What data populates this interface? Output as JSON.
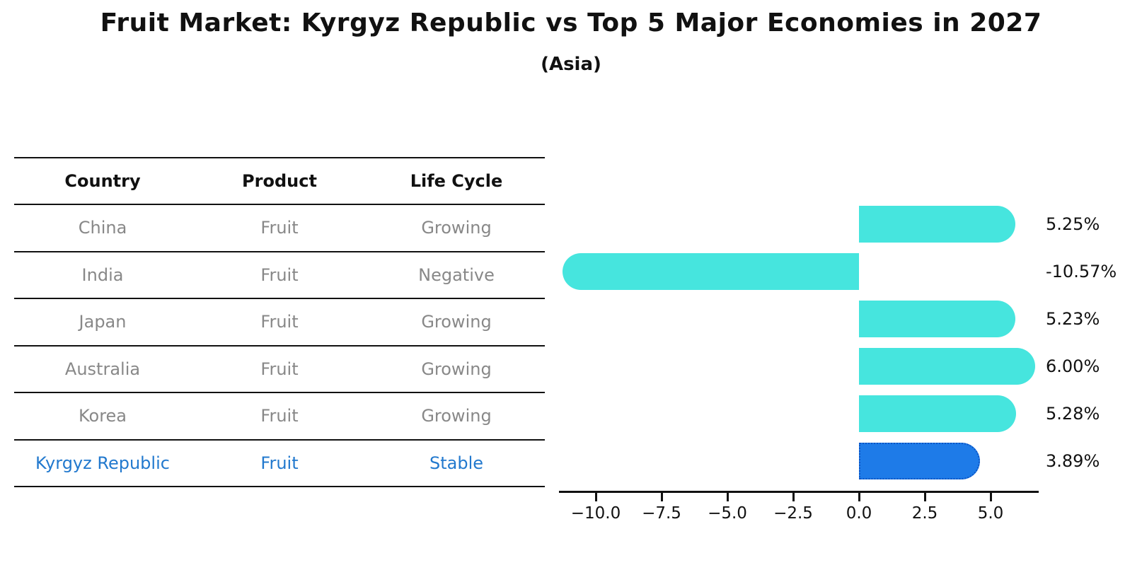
{
  "title": "Fruit Market: Kyrgyz Republic vs Top 5 Major Economies in 2027",
  "subtitle": "(Asia)",
  "table": {
    "headers": [
      "Country",
      "Product",
      "Life Cycle"
    ],
    "rows": [
      {
        "country": "China",
        "product": "Fruit",
        "life_cycle": "Growing",
        "highlight": false
      },
      {
        "country": "India",
        "product": "Fruit",
        "life_cycle": "Negative",
        "highlight": false
      },
      {
        "country": "Japan",
        "product": "Fruit",
        "life_cycle": "Growing",
        "highlight": false
      },
      {
        "country": "Australia",
        "product": "Fruit",
        "life_cycle": "Growing",
        "highlight": false
      },
      {
        "country": "Korea",
        "product": "Fruit",
        "life_cycle": "Growing",
        "highlight": false
      },
      {
        "country": "Kyrgyz Republic",
        "product": "Fruit",
        "life_cycle": "Stable",
        "highlight": true
      }
    ]
  },
  "chart_data": {
    "type": "bar",
    "orientation": "horizontal",
    "title": "Fruit Market: Kyrgyz Republic vs Top 5 Major Economies in 2027 (Asia)",
    "categories": [
      "China",
      "India",
      "Japan",
      "Australia",
      "Korea",
      "Kyrgyz Republic"
    ],
    "values": [
      5.25,
      -10.57,
      5.23,
      6.0,
      5.28,
      3.89
    ],
    "value_labels": [
      "5.25%",
      "-10.57%",
      "5.23%",
      "6.00%",
      "5.28%",
      "3.89%"
    ],
    "x_ticks": [
      -10.0,
      -7.5,
      -5.0,
      -2.5,
      0.0,
      2.5,
      5.0
    ],
    "x_tick_labels": [
      "−10.0",
      "−7.5",
      "−5.0",
      "−2.5",
      "0.0",
      "2.5",
      "5.0"
    ],
    "xlim": [
      -11.4,
      6.83
    ],
    "xlabel": "",
    "ylabel": "",
    "grid": false,
    "legend": null,
    "highlight_index": 5,
    "colors": {
      "default_bar": "#46E5DE",
      "highlight_bar": "#1E7BE8",
      "highlight_border": "#0d55c4",
      "highlight_text": "#2279CE",
      "row_text": "#888888",
      "header_text": "#111111"
    }
  }
}
